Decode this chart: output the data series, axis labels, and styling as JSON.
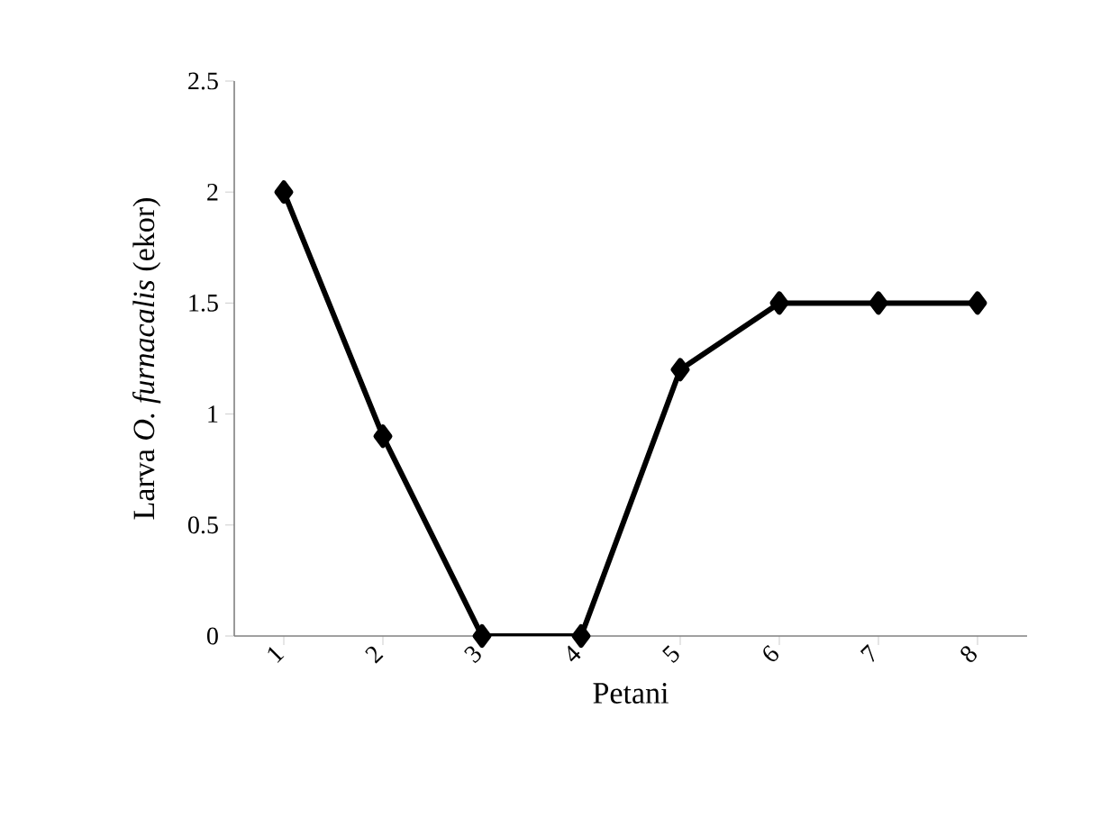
{
  "chart_data": {
    "type": "line",
    "xlabel": "Petani",
    "ylabel": "Larva *O. furnacalis* (ekor)",
    "categories": [
      "1",
      "2",
      "3",
      "4",
      "5",
      "6",
      "7",
      "8"
    ],
    "values": [
      2,
      0.9,
      0,
      0,
      1.2,
      1.5,
      1.5,
      1.5
    ],
    "color": "#000000",
    "marker": "diamond",
    "line_style": "solid",
    "ylim": [
      0,
      2.5
    ],
    "yticks": [
      0,
      0.5,
      1,
      1.5,
      2,
      2.5
    ]
  }
}
